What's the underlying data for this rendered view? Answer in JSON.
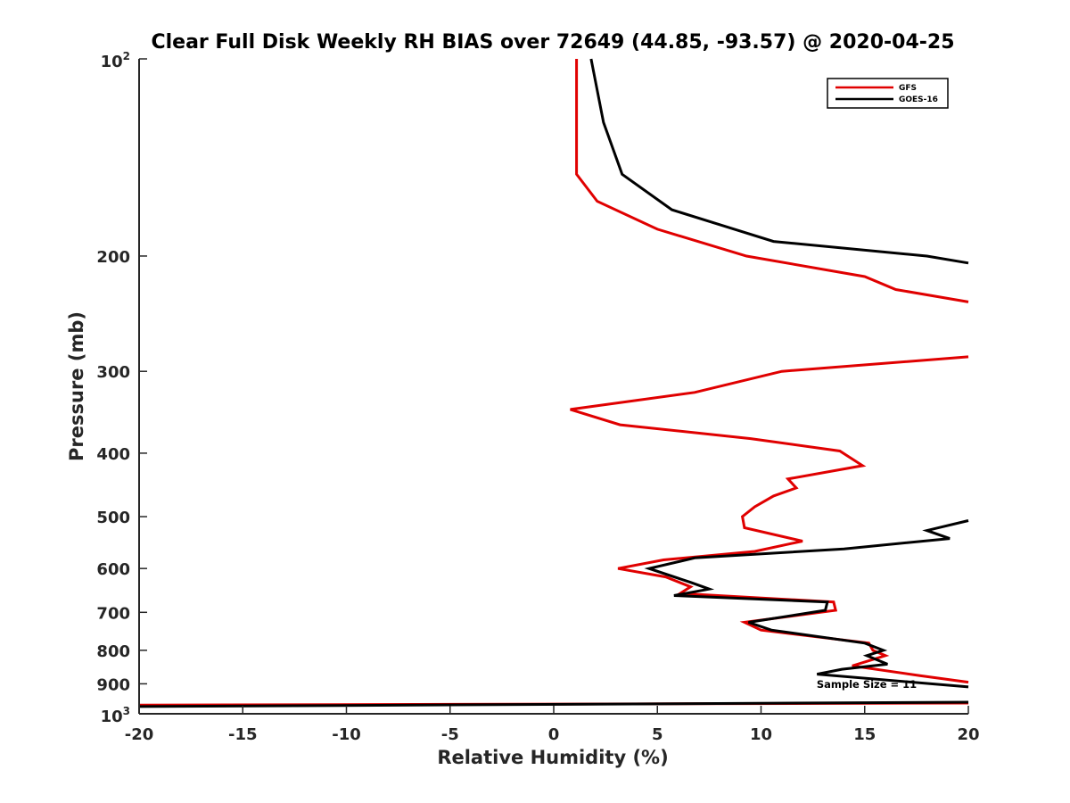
{
  "chart_data": {
    "type": "line",
    "title": "Clear Full Disk Weekly RH BIAS over 72649 (44.85, -93.57) @ 2020-04-25",
    "xlabel": "Relative Humidity (%)",
    "ylabel": "Pressure (mb)",
    "xlim": [
      -20,
      20
    ],
    "ylim": [
      100,
      1000
    ],
    "y_scale": "log",
    "y_reversed": true,
    "x_ticks": [
      "-20",
      "-15",
      "-10",
      "-5",
      "0",
      "5",
      "10",
      "15",
      "20"
    ],
    "y_ticks": [
      {
        "value": 100,
        "base": "10",
        "exp": "2"
      },
      {
        "value": 200,
        "label": "200"
      },
      {
        "value": 300,
        "label": "300"
      },
      {
        "value": 400,
        "label": "400"
      },
      {
        "value": 500,
        "label": "500"
      },
      {
        "value": 600,
        "label": "600"
      },
      {
        "value": 700,
        "label": "700"
      },
      {
        "value": 800,
        "label": "800"
      },
      {
        "value": 900,
        "label": "900"
      },
      {
        "value": 1000,
        "base": "10",
        "exp": "3"
      }
    ],
    "legend_position": "top-right",
    "grid": false,
    "annotation": "Sample Size = 11",
    "series": [
      {
        "name": "GFS",
        "color": "#e00000",
        "segments": [
          [
            [
              1.1,
              100
            ],
            [
              1.1,
              125
            ],
            [
              1.1,
              150
            ],
            [
              2.1,
              165
            ],
            [
              5,
              182
            ],
            [
              9.3,
              200
            ],
            [
              15,
              215
            ],
            [
              16.5,
              225
            ],
            [
              20,
              235
            ]
          ],
          [
            [
              20,
              285
            ],
            [
              11,
              300
            ],
            [
              6.8,
              323
            ],
            [
              0.8,
              343
            ],
            [
              3.2,
              362
            ],
            [
              9.5,
              380
            ],
            [
              13.8,
              397
            ],
            [
              14.9,
              418
            ],
            [
              11.3,
              438
            ],
            [
              11.7,
              452
            ],
            [
              10.6,
              465
            ],
            [
              9.7,
              483
            ],
            [
              9.1,
              500
            ],
            [
              9.2,
              520
            ],
            [
              12,
              545
            ],
            [
              9.7,
              565
            ],
            [
              5.3,
              582
            ],
            [
              3.1,
              600
            ],
            [
              5.4,
              618
            ],
            [
              6.6,
              640
            ],
            [
              6.1,
              655
            ],
            [
              13.5,
              675
            ],
            [
              13.6,
              695
            ],
            [
              9.2,
              725
            ],
            [
              10,
              745
            ],
            [
              15.2,
              780
            ],
            [
              15.4,
              800
            ],
            [
              16,
              815
            ],
            [
              14.4,
              845
            ],
            [
              17.7,
              875
            ],
            [
              20,
              895
            ]
          ],
          [
            [
              -20,
              970
            ],
            [
              20,
              963
            ]
          ]
        ]
      },
      {
        "name": "GOES-16",
        "color": "#000000",
        "segments": [
          [
            [
              1.8,
              100
            ],
            [
              2.4,
              125
            ],
            [
              3.3,
              150
            ],
            [
              5.7,
              170
            ],
            [
              10.6,
              190
            ],
            [
              18,
              200
            ],
            [
              20,
              205
            ]
          ],
          [
            [
              20,
              507
            ],
            [
              18,
              525
            ],
            [
              19.1,
              540
            ],
            [
              14,
              560
            ],
            [
              6.8,
              578
            ],
            [
              4.6,
              600
            ],
            [
              6.6,
              630
            ],
            [
              7.5,
              645
            ],
            [
              5.8,
              660
            ],
            [
              13.2,
              675
            ],
            [
              13.1,
              695
            ],
            [
              9.4,
              725
            ],
            [
              10.5,
              745
            ],
            [
              15,
              780
            ],
            [
              15.9,
              800
            ],
            [
              15.1,
              815
            ],
            [
              16.1,
              840
            ],
            [
              13.9,
              855
            ],
            [
              12.7,
              870
            ],
            [
              20,
              910
            ]
          ],
          [
            [
              -20,
              975
            ],
            [
              20,
              960
            ]
          ]
        ]
      }
    ]
  }
}
